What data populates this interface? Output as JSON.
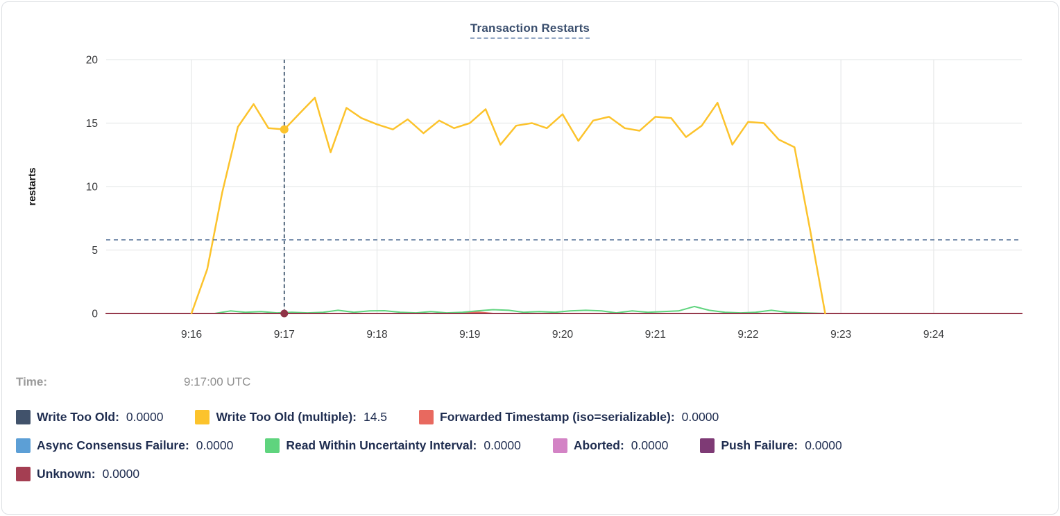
{
  "header": {
    "title": "Transaction Restarts"
  },
  "tooltip": {
    "time_label": "Time:",
    "time_value": "9:17:00 UTC"
  },
  "legend": {
    "items": [
      {
        "label": "Write Too Old:",
        "value": "0.0000",
        "color": "#41526b"
      },
      {
        "label": "Write Too Old (multiple):",
        "value": "14.5",
        "color": "#fcc32c"
      },
      {
        "label": "Forwarded Timestamp (iso=serializable):",
        "value": "0.0000",
        "color": "#e8695f"
      },
      {
        "label": "Async Consensus Failure:",
        "value": "0.0000",
        "color": "#5c9fd6"
      },
      {
        "label": "Read Within Uncertainty Interval:",
        "value": "0.0000",
        "color": "#5fd47e"
      },
      {
        "label": "Aborted:",
        "value": "0.0000",
        "color": "#d383c5"
      },
      {
        "label": "Push Failure:",
        "value": "0.0000",
        "color": "#7e3a75"
      },
      {
        "label": "Unknown:",
        "value": "0.0000",
        "color": "#a43e52"
      }
    ],
    "rows": [
      [
        0,
        1,
        2
      ],
      [
        3,
        4,
        5,
        6
      ],
      [
        7
      ]
    ]
  },
  "chart_data": {
    "type": "line",
    "title": "Transaction Restarts",
    "xlabel": "",
    "ylabel": "restarts",
    "ylim": [
      0,
      20
    ],
    "y_ticks": [
      0,
      5,
      10,
      15,
      20
    ],
    "xlim": [
      15.08,
      24.95
    ],
    "x_ticks": [
      {
        "t": 16,
        "label": "9:16"
      },
      {
        "t": 17,
        "label": "9:17"
      },
      {
        "t": 18,
        "label": "9:18"
      },
      {
        "t": 19,
        "label": "9:19"
      },
      {
        "t": 20,
        "label": "9:20"
      },
      {
        "t": 21,
        "label": "9:21"
      },
      {
        "t": 22,
        "label": "9:22"
      },
      {
        "t": 23,
        "label": "9:23"
      },
      {
        "t": 24,
        "label": "9:24"
      }
    ],
    "grid": true,
    "legend_position": "bottom",
    "crosshair": {
      "t": 17.0,
      "time": "9:17:00 UTC",
      "value": 14.5,
      "vline_color": "#3e556e",
      "hline_value": 5.8,
      "hline_color": "#5f7a9e"
    },
    "series": [
      {
        "name": "Write Too Old",
        "color": "#41526b",
        "width": 1.5,
        "points": [
          [
            15.08,
            0
          ],
          [
            24.95,
            0
          ]
        ]
      },
      {
        "name": "Async Consensus Failure",
        "color": "#5c9fd6",
        "width": 1.5,
        "points": [
          [
            15.08,
            0
          ],
          [
            24.95,
            0
          ]
        ]
      },
      {
        "name": "Aborted",
        "color": "#d383c5",
        "width": 1.5,
        "points": [
          [
            15.08,
            0
          ],
          [
            24.95,
            0
          ]
        ]
      },
      {
        "name": "Push Failure",
        "color": "#7e3a75",
        "width": 1.5,
        "points": [
          [
            15.08,
            0
          ],
          [
            24.95,
            0
          ]
        ]
      },
      {
        "name": "Forwarded Timestamp (iso=serializable)",
        "color": "#e8695f",
        "width": 2,
        "points": [
          [
            15.08,
            0
          ],
          [
            18.85,
            0
          ],
          [
            18.95,
            0.08
          ],
          [
            19.1,
            0.1
          ],
          [
            19.25,
            0
          ],
          [
            24.95,
            0
          ]
        ]
      },
      {
        "name": "Read Within Uncertainty Interval",
        "color": "#5fd47e",
        "width": 2,
        "points": [
          [
            16.25,
            0
          ],
          [
            16.42,
            0.2
          ],
          [
            16.58,
            0.1
          ],
          [
            16.75,
            0.15
          ],
          [
            16.92,
            0.05
          ],
          [
            17.08,
            0.1
          ],
          [
            17.25,
            0.05
          ],
          [
            17.42,
            0.1
          ],
          [
            17.58,
            0.25
          ],
          [
            17.75,
            0.1
          ],
          [
            17.92,
            0.2
          ],
          [
            18.08,
            0.22
          ],
          [
            18.25,
            0.1
          ],
          [
            18.42,
            0.05
          ],
          [
            18.58,
            0.15
          ],
          [
            18.75,
            0.05
          ],
          [
            18.92,
            0.1
          ],
          [
            19.08,
            0.2
          ],
          [
            19.25,
            0.3
          ],
          [
            19.42,
            0.25
          ],
          [
            19.58,
            0.1
          ],
          [
            19.75,
            0.15
          ],
          [
            19.92,
            0.1
          ],
          [
            20.08,
            0.2
          ],
          [
            20.25,
            0.25
          ],
          [
            20.42,
            0.2
          ],
          [
            20.58,
            0.05
          ],
          [
            20.75,
            0.2
          ],
          [
            20.92,
            0.1
          ],
          [
            21.08,
            0.15
          ],
          [
            21.25,
            0.2
          ],
          [
            21.42,
            0.55
          ],
          [
            21.58,
            0.25
          ],
          [
            21.75,
            0.1
          ],
          [
            21.92,
            0.05
          ],
          [
            22.08,
            0.1
          ],
          [
            22.25,
            0.25
          ],
          [
            22.42,
            0.1
          ],
          [
            22.58,
            0.05
          ],
          [
            22.83,
            0
          ]
        ]
      },
      {
        "name": "Unknown",
        "color": "#96394c",
        "width": 2,
        "points": [
          [
            15.08,
            0
          ],
          [
            24.95,
            0
          ]
        ]
      },
      {
        "name": "Write Too Old (multiple)",
        "color": "#fcc32c",
        "width": 2.5,
        "points": [
          [
            16.0,
            0
          ],
          [
            16.17,
            3.5
          ],
          [
            16.33,
            9.5
          ],
          [
            16.5,
            14.7
          ],
          [
            16.67,
            16.5
          ],
          [
            16.83,
            14.6
          ],
          [
            17.0,
            14.5
          ],
          [
            17.17,
            15.8
          ],
          [
            17.33,
            17.0
          ],
          [
            17.5,
            12.7
          ],
          [
            17.67,
            16.2
          ],
          [
            17.83,
            15.4
          ],
          [
            18.0,
            14.9
          ],
          [
            18.17,
            14.5
          ],
          [
            18.33,
            15.3
          ],
          [
            18.5,
            14.2
          ],
          [
            18.67,
            15.2
          ],
          [
            18.83,
            14.6
          ],
          [
            19.0,
            15.0
          ],
          [
            19.17,
            16.1
          ],
          [
            19.33,
            13.3
          ],
          [
            19.5,
            14.8
          ],
          [
            19.67,
            15.0
          ],
          [
            19.83,
            14.6
          ],
          [
            20.0,
            15.7
          ],
          [
            20.17,
            13.6
          ],
          [
            20.33,
            15.2
          ],
          [
            20.5,
            15.5
          ],
          [
            20.67,
            14.6
          ],
          [
            20.83,
            14.4
          ],
          [
            21.0,
            15.5
          ],
          [
            21.17,
            15.4
          ],
          [
            21.33,
            13.9
          ],
          [
            21.5,
            14.8
          ],
          [
            21.67,
            16.6
          ],
          [
            21.83,
            13.3
          ],
          [
            22.0,
            15.1
          ],
          [
            22.17,
            15.0
          ],
          [
            22.33,
            13.7
          ],
          [
            22.5,
            13.1
          ],
          [
            22.67,
            6.5
          ],
          [
            22.83,
            0
          ]
        ]
      }
    ],
    "highlight_dots": [
      {
        "t": 17.0,
        "v": 14.5,
        "color": "#fcc32c",
        "r": 6
      },
      {
        "t": 17.0,
        "v": 0,
        "color": "#8f3347",
        "r": 5.5
      }
    ],
    "colors": {
      "grid": "#e8e9ea",
      "tick_text": "#38393b",
      "axis_label_text": "#111111",
      "title_text": "#3b4f6e"
    }
  }
}
